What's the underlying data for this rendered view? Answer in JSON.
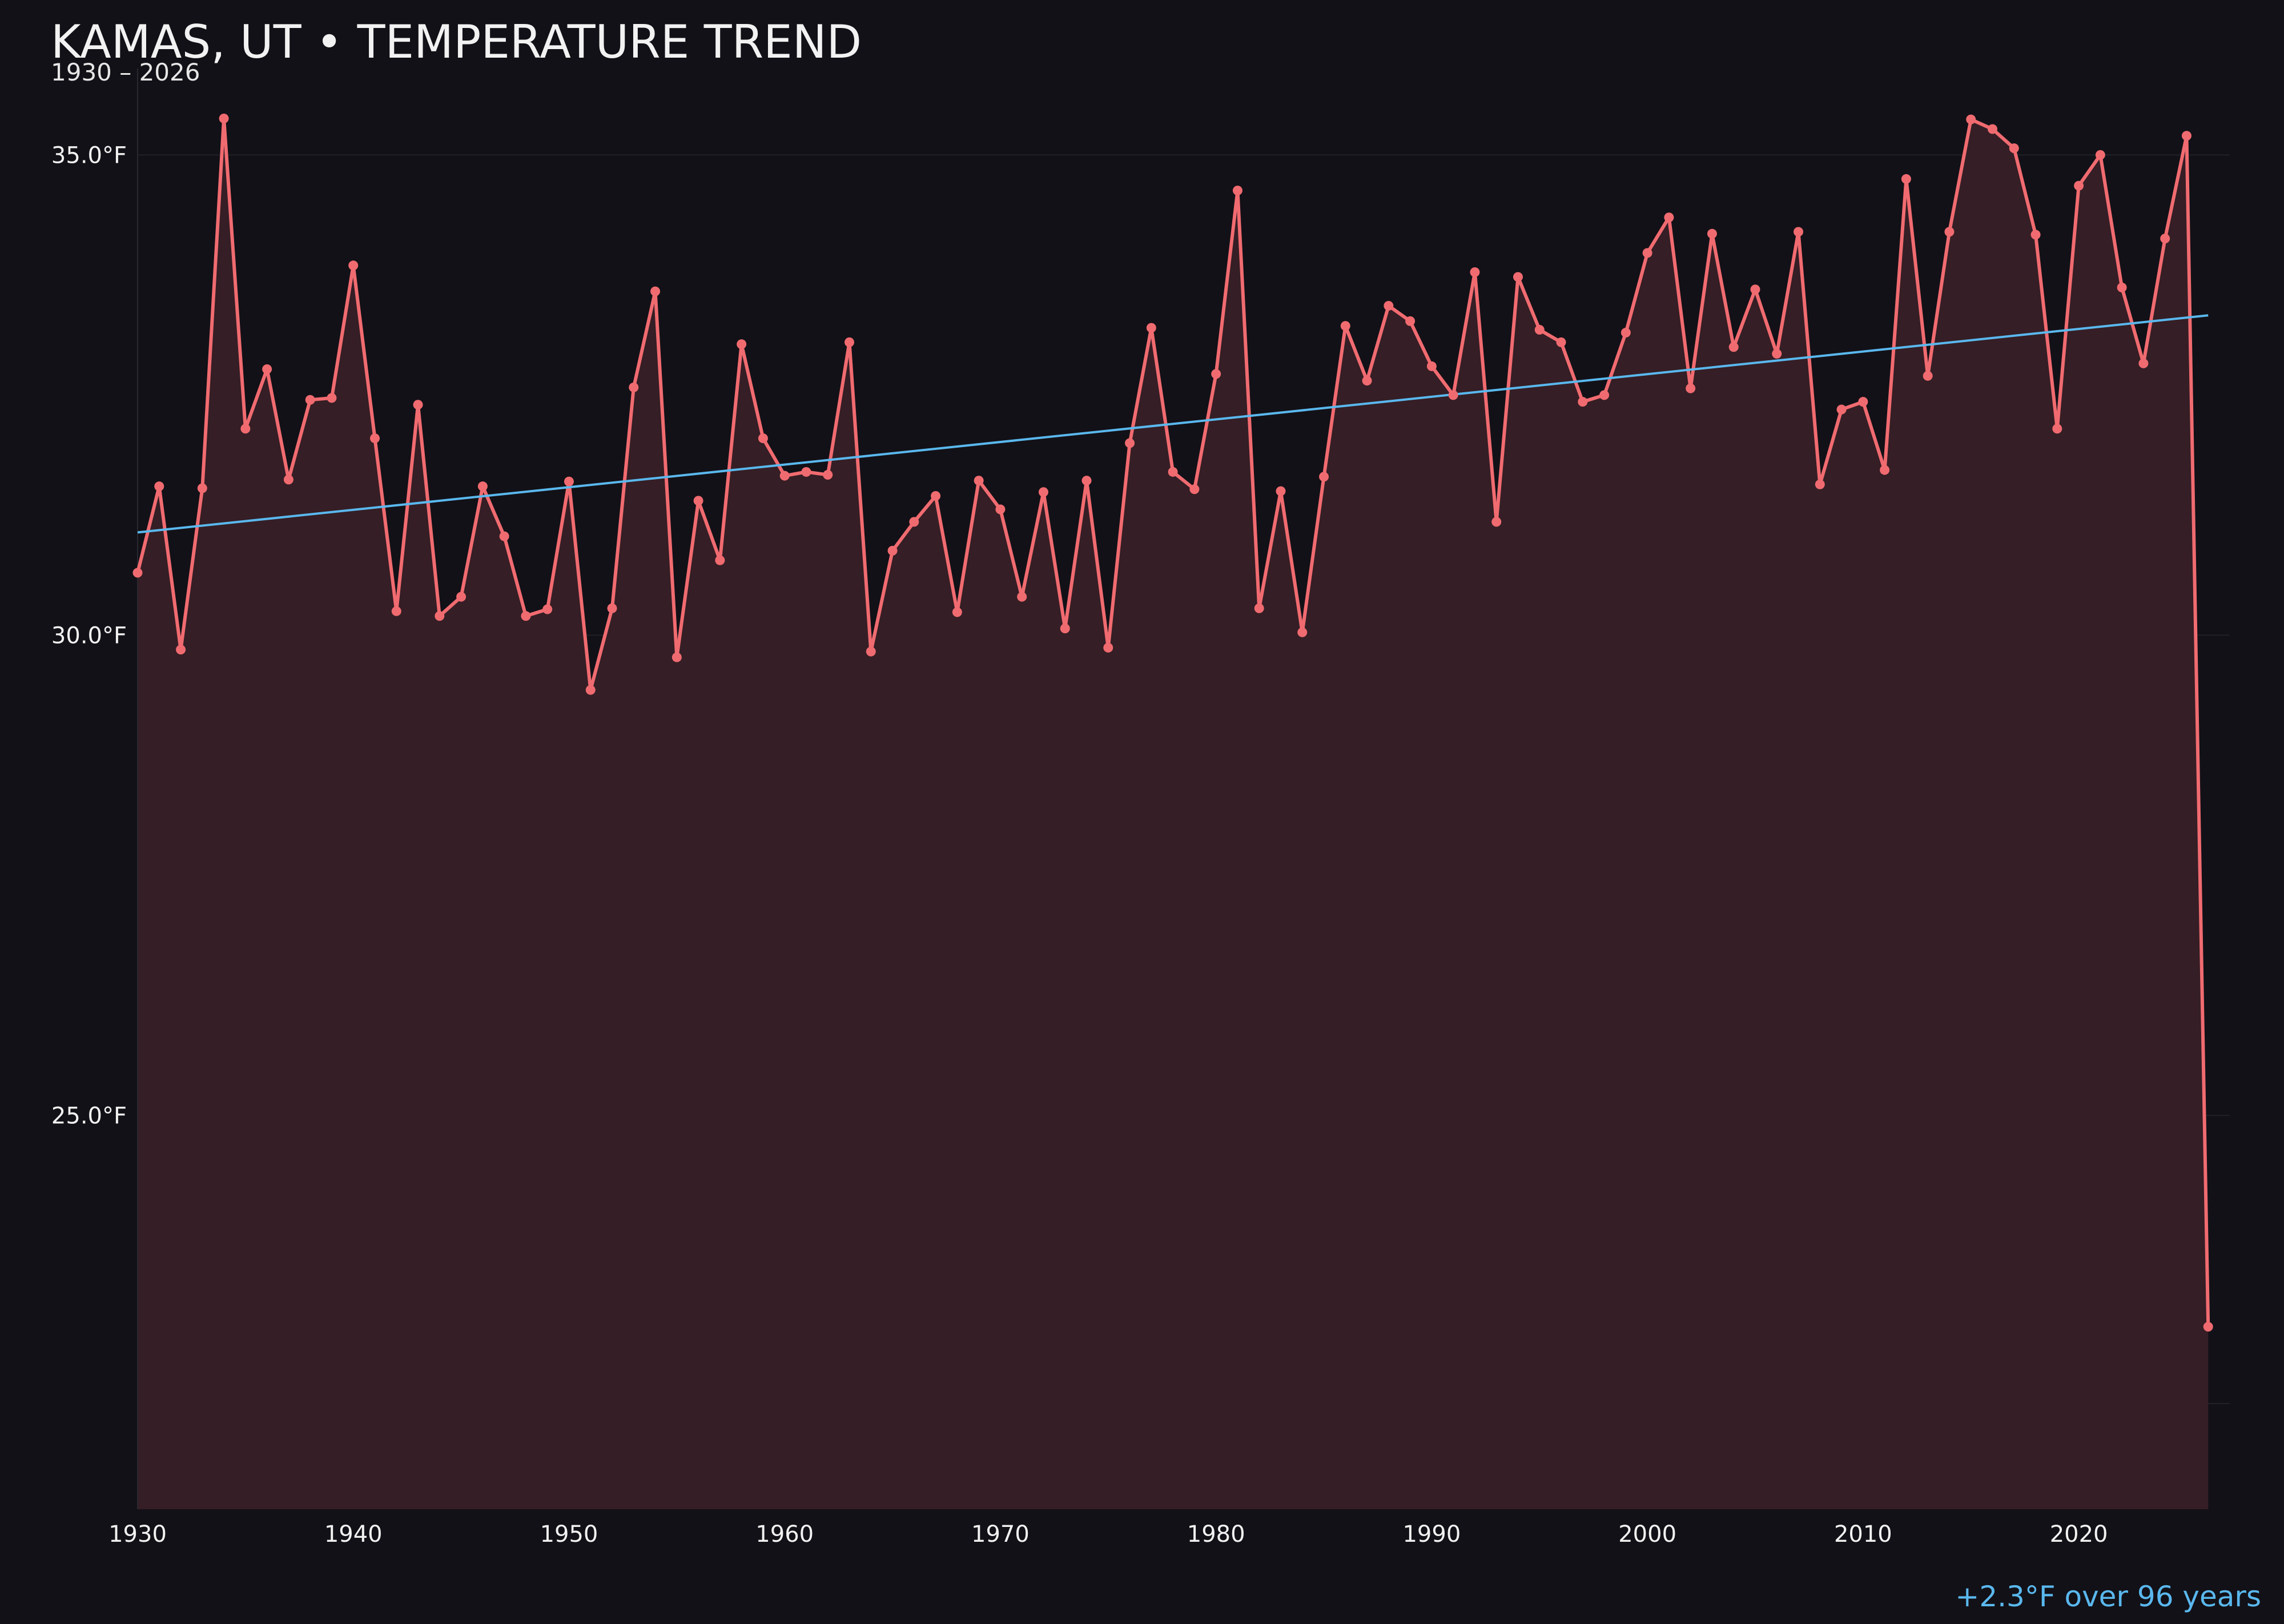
{
  "chart_data": {
    "type": "line",
    "title": "KAMAS, UT • TEMPERATURE TREND",
    "subtitle": "1930 – 2026",
    "annotation": "+2.3°F over 96 years",
    "xlabel": "",
    "ylabel": "",
    "xlim": [
      1930,
      2027
    ],
    "ylim": [
      20.9,
      35.9
    ],
    "x_ticks": [
      1930,
      1940,
      1950,
      1960,
      1970,
      1980,
      1990,
      2000,
      2010,
      2020
    ],
    "y_ticks": [
      {
        "value": 25,
        "label": "25.0°F"
      },
      {
        "value": 30,
        "label": "30.0°F"
      },
      {
        "value": 35,
        "label": "35.0°F"
      }
    ],
    "grid": true,
    "colors": {
      "background": "#121117",
      "series": "#f06b70",
      "area_fill": "#351e25",
      "trend": "#5ab8ee",
      "grid": "#232128"
    },
    "series": [
      {
        "x": [
          1930,
          1931,
          1932,
          1933,
          1934,
          1935,
          1936,
          1937,
          1938,
          1939,
          1940,
          1941,
          1942,
          1943,
          1944,
          1945,
          1946,
          1947,
          1948,
          1949,
          1950,
          1951,
          1952,
          1953,
          1954,
          1955,
          1956,
          1957,
          1958,
          1959,
          1960,
          1961,
          1962,
          1963,
          1964,
          1965,
          1966,
          1967,
          1968,
          1969,
          1970,
          1971,
          1972,
          1973,
          1974,
          1975,
          1976,
          1977,
          1978,
          1979,
          1980,
          1981,
          1982,
          1983,
          1984,
          1985,
          1986,
          1987,
          1988,
          1989,
          1990,
          1991,
          1992,
          1993,
          1994,
          1995,
          1996,
          1997,
          1998,
          1999,
          2000,
          2001,
          2002,
          2003,
          2004,
          2005,
          2006,
          2007,
          2008,
          2009,
          2010,
          2011,
          2012,
          2013,
          2014,
          2015,
          2016,
          2017,
          2018,
          2019,
          2020,
          2021,
          2022,
          2023,
          2024,
          2025,
          2026
        ],
        "values": [
          30.65,
          31.55,
          29.85,
          31.53,
          35.38,
          32.15,
          32.77,
          31.62,
          32.45,
          32.47,
          33.85,
          32.05,
          30.25,
          32.4,
          30.2,
          30.4,
          31.55,
          31.03,
          30.2,
          30.27,
          31.6,
          29.43,
          30.28,
          32.58,
          33.58,
          29.77,
          31.4,
          30.78,
          33.03,
          32.05,
          31.66,
          31.7,
          31.67,
          33.05,
          29.83,
          30.88,
          31.18,
          31.45,
          30.24,
          31.61,
          31.31,
          30.4,
          31.49,
          30.07,
          31.61,
          29.87,
          32.0,
          33.2,
          31.7,
          31.52,
          32.72,
          34.63,
          30.28,
          31.5,
          30.03,
          31.65,
          33.22,
          32.65,
          33.43,
          33.27,
          32.8,
          32.5,
          33.78,
          31.18,
          33.73,
          33.18,
          33.05,
          32.43,
          32.5,
          33.15,
          33.98,
          34.35,
          32.57,
          34.18,
          33.0,
          33.6,
          32.93,
          34.2,
          31.57,
          32.35,
          32.43,
          31.72,
          34.75,
          32.7,
          34.2,
          35.37,
          35.27,
          35.07,
          34.17,
          32.15,
          34.68,
          35.0,
          33.62,
          32.83,
          34.13,
          35.2,
          22.8
        ]
      }
    ],
    "trend": {
      "x": [
        1930,
        2026
      ],
      "y": [
        31.07,
        33.33
      ]
    }
  }
}
